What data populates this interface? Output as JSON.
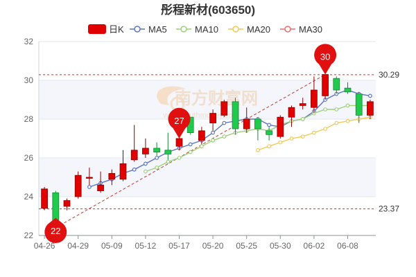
{
  "chart_data": {
    "type": "candlestick",
    "title": "彤程新材(603650)",
    "watermark": "南方财富网",
    "watermark_sub": "www.southmoney.com",
    "legend": [
      {
        "label": "日K",
        "color": "#e00000",
        "kind": "candle"
      },
      {
        "label": "MA5",
        "color": "#5a74c2",
        "kind": "line"
      },
      {
        "label": "MA10",
        "color": "#9bd27a",
        "kind": "line"
      },
      {
        "label": "MA20",
        "color": "#f5c951",
        "kind": "line"
      },
      {
        "label": "MA30",
        "color": "#f26d6d",
        "kind": "line"
      }
    ],
    "legend_placement": "top-center",
    "ylim": [
      22,
      32
    ],
    "yticks": [
      "22",
      "24",
      "26",
      "28",
      "30",
      "32"
    ],
    "xtick_labels": [
      {
        "index": 0,
        "label": "04-26"
      },
      {
        "index": 3,
        "label": "04-29"
      },
      {
        "index": 6,
        "label": "05-09"
      },
      {
        "index": 9,
        "label": "05-12"
      },
      {
        "index": 12,
        "label": "05-17"
      },
      {
        "index": 15,
        "label": "05-20"
      },
      {
        "index": 18,
        "label": "05-25"
      },
      {
        "index": 21,
        "label": "05-30"
      },
      {
        "index": 24,
        "label": "06-02"
      },
      {
        "index": 27,
        "label": "06-08"
      }
    ],
    "candles": [
      {
        "open": 23.4,
        "close": 24.4,
        "low": 23.3,
        "high": 24.5
      },
      {
        "open": 24.2,
        "close": 22.4,
        "low": 22.3,
        "high": 24.3
      },
      {
        "open": 23.5,
        "close": 23.8,
        "low": 23.3,
        "high": 23.9
      },
      {
        "open": 24.0,
        "close": 25.1,
        "low": 23.9,
        "high": 25.3
      },
      {
        "open": 25.0,
        "close": 25.0,
        "low": 24.6,
        "high": 25.5
      },
      {
        "open": 24.3,
        "close": 24.6,
        "low": 24.2,
        "high": 25.3
      },
      {
        "open": 24.9,
        "close": 25.2,
        "low": 24.6,
        "high": 25.4
      },
      {
        "open": 24.9,
        "close": 25.7,
        "low": 24.8,
        "high": 26.4
      },
      {
        "open": 25.9,
        "close": 26.4,
        "low": 25.8,
        "high": 27.7
      },
      {
        "open": 26.2,
        "close": 26.5,
        "low": 26.0,
        "high": 27.0
      },
      {
        "open": 26.5,
        "close": 26.3,
        "low": 26.1,
        "high": 26.8
      },
      {
        "open": 26.4,
        "close": 26.2,
        "low": 25.9,
        "high": 27.3
      },
      {
        "open": 26.6,
        "close": 27.0,
        "low": 26.4,
        "high": 27.4
      },
      {
        "open": 28.1,
        "close": 27.3,
        "low": 27.2,
        "high": 28.1
      },
      {
        "open": 26.9,
        "close": 27.4,
        "low": 26.7,
        "high": 27.6
      },
      {
        "open": 27.8,
        "close": 28.3,
        "low": 27.4,
        "high": 28.5
      },
      {
        "open": 28.2,
        "close": 28.9,
        "low": 28.1,
        "high": 29.0
      },
      {
        "open": 28.9,
        "close": 27.5,
        "low": 27.2,
        "high": 29.1
      },
      {
        "open": 27.5,
        "close": 28.0,
        "low": 27.3,
        "high": 28.6
      },
      {
        "open": 28.0,
        "close": 27.5,
        "low": 26.9,
        "high": 28.1
      },
      {
        "open": 27.4,
        "close": 27.2,
        "low": 26.9,
        "high": 27.6
      },
      {
        "open": 27.1,
        "close": 28.1,
        "low": 27.0,
        "high": 28.2
      },
      {
        "open": 28.1,
        "close": 28.6,
        "low": 27.6,
        "high": 28.7
      },
      {
        "open": 28.7,
        "close": 28.8,
        "low": 28.5,
        "high": 29.1
      },
      {
        "open": 28.6,
        "close": 29.5,
        "low": 28.3,
        "high": 30.2
      },
      {
        "open": 29.2,
        "close": 30.3,
        "low": 29.0,
        "high": 30.3
      },
      {
        "open": 30.1,
        "close": 29.5,
        "low": 29.3,
        "high": 30.2
      },
      {
        "open": 29.6,
        "close": 29.4,
        "low": 29.3,
        "high": 29.9
      },
      {
        "open": 29.3,
        "close": 28.2,
        "low": 27.8,
        "high": 29.4
      },
      {
        "open": 28.2,
        "close": 28.9,
        "low": 28.0,
        "high": 29.0
      }
    ],
    "ma_series": [
      {
        "name": "MA5",
        "color": "#5a74c2",
        "values": [
          null,
          null,
          null,
          null,
          24.5,
          24.7,
          24.9,
          25.2,
          25.4,
          25.7,
          26.0,
          26.3,
          26.5,
          26.7,
          26.9,
          27.3,
          27.8,
          27.9,
          28.0,
          28.0,
          27.7,
          27.6,
          27.9,
          28.0,
          28.4,
          29.0,
          29.3,
          29.5,
          29.3,
          29.2
        ]
      },
      {
        "name": "MA10",
        "color": "#9bd27a",
        "values": [
          null,
          null,
          null,
          null,
          null,
          null,
          null,
          null,
          null,
          25.3,
          25.5,
          25.8,
          26.0,
          26.3,
          26.6,
          26.9,
          27.1,
          27.3,
          27.4,
          27.5,
          27.4,
          27.7,
          27.9,
          28.0,
          28.3,
          28.5,
          28.5,
          28.7,
          28.7,
          28.7
        ]
      },
      {
        "name": "MA20",
        "color": "#f5c951",
        "values": [
          null,
          null,
          null,
          null,
          null,
          null,
          null,
          null,
          null,
          null,
          null,
          null,
          null,
          null,
          null,
          null,
          null,
          null,
          null,
          26.4,
          26.6,
          26.8,
          27.0,
          27.1,
          27.3,
          27.5,
          27.8,
          27.9,
          28.0,
          28.1
        ]
      }
    ],
    "annotations": {
      "low_marker": {
        "index": 1,
        "value": 22.4,
        "label": "22"
      },
      "high_marker": {
        "index": 25,
        "value": 30.3,
        "label": "30"
      },
      "mid_marker": {
        "index": 12,
        "value": 27.0,
        "label": "27"
      },
      "resistance": {
        "value": 30.29,
        "label": "30.29"
      },
      "support": {
        "value": 23.37,
        "label": "23.37"
      },
      "trendline": {
        "from_index": 1,
        "from_value": 22.4,
        "to_index": 25,
        "to_value": 30.3
      }
    }
  }
}
